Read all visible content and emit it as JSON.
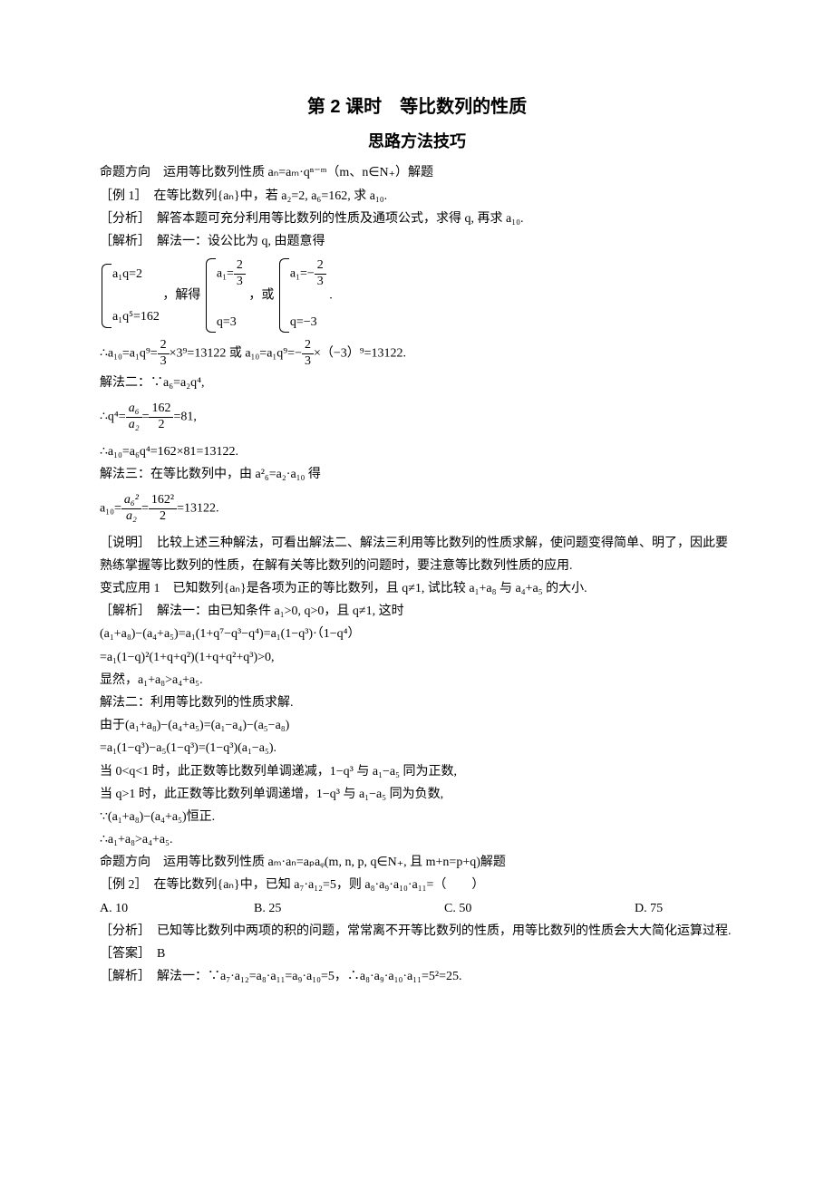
{
  "title": "第 2 课时　等比数列的性质",
  "subtitle": "思路方法技巧",
  "dir1": "命题方向　运用等比数列性质 aₙ=aₘ·qⁿ⁻ᵐ（m、n∈N₊）解题",
  "ex1_head": "［例 1］　在等比数列{aₙ}中，若 a₂=2, a₆=162, 求 a₁₀.",
  "ex1_fx": "［分析］　解答本题可充分利用等比数列的性质及通项公式，求得 q, 再求 a₁₀.",
  "ex1_jx": "［解析］　解法一：设公比为 q, 由题意得",
  "sys_left_1": "a₁q=2",
  "sys_left_2": "a₁q⁵=162",
  "sys_mid_txt": "，解得",
  "sys_a_1_lhs": "a₁=",
  "sys_a_1_num": "2",
  "sys_a_1_den": "3",
  "sys_a_2": "q=3",
  "sys_or": "，或",
  "sys_b_1_lhs": "a₁=−",
  "sys_b_1_num": "2",
  "sys_b_1_den": "3",
  "sys_b_2": "q=−3",
  "sys_end": ".",
  "line_a10_1a": "∴a₁₀=a₁q⁹=",
  "line_a10_1_num": "2",
  "line_a10_1_den": "3",
  "line_a10_1b": "×3⁹=13122 或 a₁₀=a₁q⁹=−",
  "line_a10_2_num": "2",
  "line_a10_2_den": "3",
  "line_a10_1c": "×（−3）⁹=13122.",
  "m2": "解法二：∵a₆=a₂q⁴,",
  "m2_q_lhs": "∴q⁴=",
  "m2_q_f1_num": "a₆",
  "m2_q_f1_den": "a₂",
  "m2_q_eq": "=",
  "m2_q_f2_num": "162",
  "m2_q_f2_den": "2",
  "m2_q_rhs": "=81,",
  "m2_res": "∴a₁₀=a₆q⁴=162×81=13122.",
  "m3": "解法三：在等比数列中，由 a²₆=a₂·a₁₀ 得",
  "m3_lhs": "a₁₀=",
  "m3_f1_num": "a₆²",
  "m3_f1_den": "a₂",
  "m3_eq": "=",
  "m3_f2_num": "162²",
  "m3_f2_den": "2",
  "m3_rhs": "=13122.",
  "note1": "［说明］　比较上述三种解法，可看出解法二、解法三利用等比数列的性质求解，使问题变得简单、明了，因此要熟练掌握等比数列的性质，在解有关等比数列的问题时，要注意等比数列性质的应用.",
  "var1": "变式应用 1　已知数列{aₙ}是各项为正的等比数列，且 q≠1, 试比较 a₁+a₈ 与 a₄+a₅ 的大小.",
  "var1_jx": "［解析］　解法一：由已知条件 a₁>0, q>0，且 q≠1, 这时",
  "var1_l1": "(a₁+a₈)−(a₄+a₅)=a₁(1+q⁷−q³−q⁴)=a₁(1−q³)·（1−q⁴）",
  "var1_l2": "=a₁(1−q)²(1+q+q²)(1+q+q²+q³)>0,",
  "var1_l3": "显然，a₁+a₈>a₄+a₅.",
  "var1_m2": "解法二：利用等比数列的性质求解.",
  "var1_m2_l1": "由于(a₁+a₈)−(a₄+a₅)=(a₁−a₄)−(a₅−a₈)",
  "var1_m2_l2": "=a₁(1−q³)−a₅(1−q³)=(1−q³)(a₁−a₅).",
  "var1_m2_l3": "当 0<q<1 时，此正数等比数列单调递减，1−q³ 与 a₁−a₅ 同为正数,",
  "var1_m2_l4": "当 q>1 时，此正数等比数列单调递增，1−q³ 与 a₁−a₅ 同为负数,",
  "var1_m2_l5": "∵(a₁+a₈)−(a₄+a₅)恒正.",
  "var1_m2_l6": "∴a₁+a₈>a₄+a₅.",
  "dir2": "命题方向　运用等比数列性质 aₘ·aₙ=aₚaᵩ(m, n, p, q∈N₊, 且 m+n=p+q)解题",
  "ex2_head": "［例 2］　在等比数列{aₙ}中，已知 a₇·a₁₂=5，则 a₈·a₉·a₁₀·a₁₁=（　　）",
  "opt_a": "A. 10",
  "opt_b": "B. 25",
  "opt_c": "C. 50",
  "opt_d": "D. 75",
  "ex2_fx": "［分析］　已知等比数列中两项的积的问题，常常离不开等比数列的性质，用等比数列的性质会大大简化运算过程.",
  "ex2_ans": "［答案］　B",
  "ex2_jx": "［解析］　解法一：∵a₇·a₁₂=a₈·a₁₁=a₉·a₁₀=5，∴a₈·a₉·a₁₀·a₁₁=5²=25."
}
